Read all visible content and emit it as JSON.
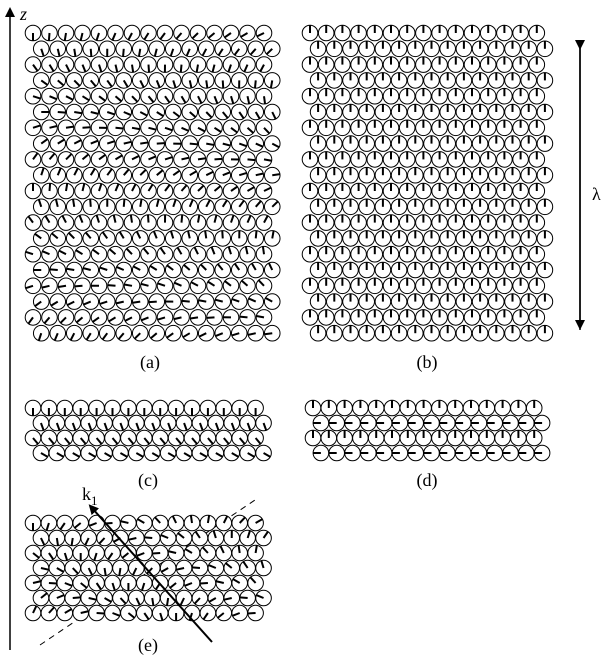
{
  "axis_label": "z",
  "wavelength_label": "λ",
  "panels": [
    {
      "label": "(a)"
    },
    {
      "label": "(b)"
    },
    {
      "label": "(c)"
    },
    {
      "label": "(d)"
    },
    {
      "label": "(e)"
    }
  ],
  "wave_vector": {
    "symbol": "k",
    "subscript": "1"
  }
}
